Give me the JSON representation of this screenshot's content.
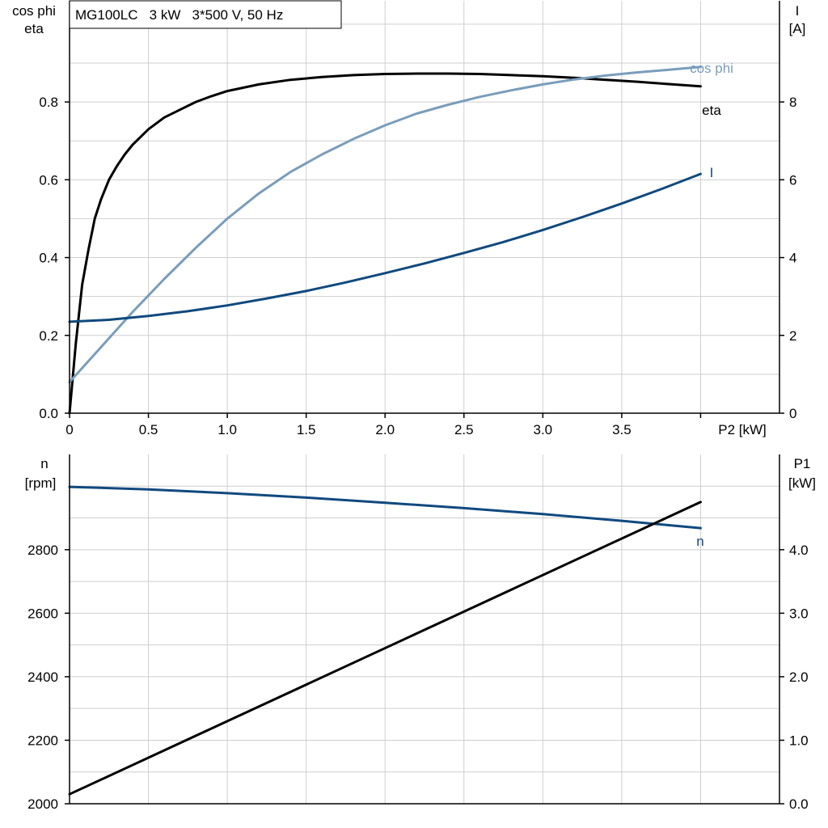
{
  "chart_data": [
    {
      "type": "line",
      "title": "MG100LC   3 kW   3*500 V, 50 Hz",
      "grid": true,
      "xlabel": "P2 [kW]",
      "xlim": [
        0,
        4.5
      ],
      "x_ticks": [
        "0",
        "0.5",
        "1.0",
        "1.5",
        "2.0",
        "2.5",
        "3.0",
        "3.5"
      ],
      "x_tick_values": [
        0,
        0.5,
        1.0,
        1.5,
        2.0,
        2.5,
        3.0,
        3.5
      ],
      "ylabel_left": [
        "cos phi",
        "eta"
      ],
      "ylim_left": [
        0,
        1.06
      ],
      "y_ticks_left": [
        "0.0",
        "0.2",
        "0.4",
        "0.6",
        "0.8"
      ],
      "y_tick_values_left": [
        0,
        0.2,
        0.4,
        0.6,
        0.8
      ],
      "ylabel_right": [
        "I",
        "[A]"
      ],
      "ylim_right": [
        0,
        10.6
      ],
      "y_ticks_right": [
        "0",
        "2",
        "4",
        "6",
        "8"
      ],
      "y_tick_values_right": [
        0,
        2,
        4,
        6,
        8
      ],
      "series": [
        {
          "name": "eta",
          "axis": "left",
          "color": "#000000",
          "x": [
            0,
            0.04,
            0.08,
            0.12,
            0.16,
            0.2,
            0.25,
            0.3,
            0.35,
            0.4,
            0.5,
            0.6,
            0.7,
            0.8,
            0.9,
            1.0,
            1.2,
            1.4,
            1.6,
            1.8,
            2.0,
            2.2,
            2.4,
            2.6,
            2.8,
            3.0,
            3.2,
            3.4,
            3.6,
            3.8,
            4.0
          ],
          "y": [
            0.0,
            0.18,
            0.33,
            0.42,
            0.5,
            0.55,
            0.6,
            0.635,
            0.665,
            0.69,
            0.73,
            0.76,
            0.78,
            0.8,
            0.815,
            0.828,
            0.845,
            0.857,
            0.864,
            0.869,
            0.872,
            0.873,
            0.873,
            0.872,
            0.869,
            0.866,
            0.862,
            0.857,
            0.852,
            0.846,
            0.84
          ]
        },
        {
          "name": "cos phi",
          "axis": "left",
          "color": "#7a9dbb",
          "x": [
            0,
            0.2,
            0.4,
            0.6,
            0.8,
            1.0,
            1.2,
            1.4,
            1.6,
            1.8,
            2.0,
            2.2,
            2.4,
            2.6,
            2.8,
            3.0,
            3.2,
            3.4,
            3.6,
            3.8,
            4.0
          ],
          "y": [
            0.08,
            0.17,
            0.26,
            0.345,
            0.425,
            0.5,
            0.565,
            0.62,
            0.665,
            0.705,
            0.74,
            0.77,
            0.793,
            0.813,
            0.83,
            0.845,
            0.858,
            0.868,
            0.876,
            0.883,
            0.89
          ]
        },
        {
          "name": "I",
          "axis": "right",
          "color": "#10497e",
          "x": [
            0,
            0.25,
            0.5,
            0.75,
            1.0,
            1.25,
            1.5,
            1.75,
            2.0,
            2.25,
            2.5,
            2.75,
            3.0,
            3.25,
            3.5,
            3.75,
            4.0
          ],
          "y": [
            2.35,
            2.4,
            2.5,
            2.62,
            2.77,
            2.95,
            3.14,
            3.36,
            3.6,
            3.85,
            4.12,
            4.4,
            4.71,
            5.04,
            5.39,
            5.76,
            6.15
          ]
        }
      ]
    },
    {
      "type": "line",
      "grid": true,
      "xlim": [
        0,
        4.5
      ],
      "ylabel_left": [
        "n",
        "[rpm]"
      ],
      "ylim_left": [
        2000,
        3100
      ],
      "y_ticks_left": [
        "2000",
        "2200",
        "2400",
        "2600",
        "2800"
      ],
      "y_tick_values_left": [
        2000,
        2200,
        2400,
        2600,
        2800
      ],
      "ylabel_right": [
        "P1",
        "[kW]"
      ],
      "ylim_right": [
        0,
        5.5
      ],
      "y_ticks_right": [
        "0.0",
        "1.0",
        "2.0",
        "3.0",
        "4.0"
      ],
      "y_tick_values_right": [
        0,
        1.0,
        2.0,
        3.0,
        4.0
      ],
      "series": [
        {
          "name": "n",
          "axis": "left",
          "color": "#10497e",
          "x": [
            0,
            0.5,
            1.0,
            1.5,
            2.0,
            2.5,
            3.0,
            3.5,
            4.0
          ],
          "y": [
            2998,
            2990,
            2978,
            2964,
            2948,
            2931,
            2912,
            2891,
            2868
          ]
        },
        {
          "name": "",
          "axis": "right",
          "color": "#000000",
          "x": [
            0,
            4.0
          ],
          "y": [
            0.15,
            4.75
          ]
        }
      ]
    }
  ]
}
